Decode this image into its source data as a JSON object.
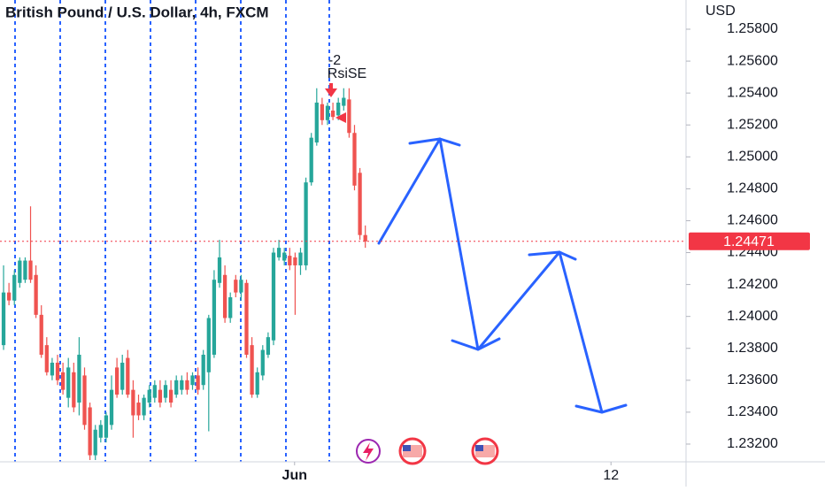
{
  "chart_data": {
    "type": "candlestick",
    "title": "British Pound / U.S. Dollar, 4h, FXCM",
    "currency": "USD",
    "annotation": {
      "count": "-2",
      "label": "RsiSE"
    },
    "x": [
      0,
      1,
      2,
      3,
      4,
      5,
      6,
      7,
      8,
      9,
      10,
      11,
      12,
      13,
      14,
      15,
      16,
      17,
      18,
      19,
      20,
      21,
      22,
      23,
      24,
      25,
      26,
      27,
      28,
      29,
      30,
      31,
      32,
      33,
      34,
      35,
      36,
      37,
      38,
      39,
      40,
      41,
      42,
      43,
      44,
      45,
      46,
      47,
      48,
      49,
      50,
      51,
      52,
      53,
      54,
      55,
      56,
      57,
      58,
      59,
      60,
      61,
      62,
      63,
      64,
      65,
      66,
      67
    ],
    "open": [
      1.2382,
      1.2415,
      1.241,
      1.2421,
      1.2423,
      1.2435,
      1.2426,
      1.2401,
      1.2382,
      1.2363,
      1.2371,
      1.2365,
      1.2349,
      1.2365,
      1.2346,
      1.2363,
      1.2343,
      1.2313,
      1.2324,
      1.2324,
      1.2332,
      1.2368,
      1.2354,
      1.2374,
      1.2354,
      1.2346,
      1.2338,
      1.2346,
      1.2349,
      1.2354,
      1.2349,
      1.2354,
      1.2351,
      1.2354,
      1.236,
      1.2357,
      1.2363,
      1.2357,
      1.2365,
      1.2376,
      1.2421,
      1.2426,
      1.2399,
      1.2423,
      1.2415,
      1.2421,
      1.2382,
      1.2351,
      1.2363,
      1.2376,
      1.2385,
      1.2437,
      1.2435,
      1.2438,
      1.2437,
      1.2432,
      1.2432,
      1.2484,
      1.2509,
      1.2533,
      1.2523,
      1.2529,
      1.2526,
      1.2532,
      1.2536,
      1.2515,
      1.249,
      1.2451
    ],
    "high": [
      1.2432,
      1.2421,
      1.2429,
      1.2437,
      1.2437,
      1.2469,
      1.2432,
      1.2407,
      1.2387,
      1.2374,
      1.2376,
      1.2371,
      1.2374,
      1.2371,
      1.2387,
      1.2368,
      1.2346,
      1.2332,
      1.2335,
      1.234,
      1.2363,
      1.2374,
      1.2376,
      1.2379,
      1.236,
      1.2351,
      1.2351,
      1.2357,
      1.236,
      1.236,
      1.236,
      1.236,
      1.2363,
      1.2363,
      1.2365,
      1.2365,
      1.2368,
      1.2379,
      1.2401,
      1.2429,
      1.2448,
      1.2432,
      1.2415,
      1.2426,
      1.2426,
      1.2423,
      1.2387,
      1.2368,
      1.2382,
      1.239,
      1.2443,
      1.2448,
      1.2443,
      1.2443,
      1.244,
      1.2443,
      1.2487,
      1.2515,
      1.2543,
      1.2537,
      1.2534,
      1.2534,
      1.2537,
      1.2543,
      1.2543,
      1.252,
      1.2493,
      1.2457
    ],
    "low": [
      1.2379,
      1.2407,
      1.2407,
      1.2418,
      1.2421,
      1.2421,
      1.2399,
      1.2374,
      1.2363,
      1.236,
      1.2357,
      1.2351,
      1.2343,
      1.234,
      1.2338,
      1.2329,
      1.231,
      1.231,
      1.2321,
      1.2321,
      1.2329,
      1.2349,
      1.2351,
      1.2349,
      1.2324,
      1.2335,
      1.2335,
      1.2343,
      1.2346,
      1.2343,
      1.2346,
      1.2343,
      1.2349,
      1.2351,
      1.2351,
      1.2354,
      1.2351,
      1.2354,
      1.2328,
      1.2374,
      1.2418,
      1.2396,
      1.2396,
      1.2412,
      1.241,
      1.2374,
      1.2349,
      1.2349,
      1.236,
      1.2374,
      1.2382,
      1.2435,
      1.2432,
      1.2429,
      1.2401,
      1.2426,
      1.2429,
      1.2482,
      1.2507,
      1.252,
      1.252,
      1.2523,
      1.2523,
      1.2529,
      1.2512,
      1.2479,
      1.2448,
      1.2443
    ],
    "close": [
      1.2415,
      1.241,
      1.2426,
      1.2435,
      1.2435,
      1.2423,
      1.2401,
      1.2376,
      1.2365,
      1.2371,
      1.236,
      1.2354,
      1.2368,
      1.2343,
      1.2376,
      1.2332,
      1.2313,
      1.2329,
      1.2332,
      1.2338,
      1.2354,
      1.2351,
      1.2371,
      1.2351,
      1.2338,
      1.2338,
      1.2349,
      1.2354,
      1.2357,
      1.2346,
      1.2357,
      1.2346,
      1.236,
      1.236,
      1.2354,
      1.2363,
      1.2354,
      1.2376,
      1.2399,
      1.2423,
      1.2437,
      1.2399,
      1.2412,
      1.2415,
      1.2423,
      1.2376,
      1.2351,
      1.2365,
      1.2379,
      1.2387,
      1.244,
      1.2443,
      1.244,
      1.2432,
      1.2432,
      1.244,
      1.2484,
      1.2512,
      1.2534,
      1.2523,
      1.2532,
      1.2525,
      1.2534,
      1.2537,
      1.2515,
      1.2482,
      1.2451,
      1.2447
    ],
    "up_color": "#26a69a",
    "down_color": "#ef5350",
    "last_price": {
      "value": 1.24471,
      "label": "1.24471",
      "color": "#f23645"
    },
    "xlim": [
      -0.66,
      126.4
    ],
    "xticks": [
      {
        "value": 53.9,
        "label": "Jun"
      },
      {
        "value": 112.5,
        "label": "12"
      }
    ],
    "ylim": [
      1.231,
      1.25983
    ],
    "yticks": [
      {
        "value": 1.258,
        "label": "1.25800"
      },
      {
        "value": 1.256,
        "label": "1.25600"
      },
      {
        "value": 1.254,
        "label": "1.25400"
      },
      {
        "value": 1.252,
        "label": "1.25200"
      },
      {
        "value": 1.25,
        "label": "1.25000"
      },
      {
        "value": 1.248,
        "label": "1.24800"
      },
      {
        "value": 1.246,
        "label": "1.24600"
      },
      {
        "value": 1.244,
        "label": "1.24400"
      },
      {
        "value": 1.242,
        "label": "1.24200"
      },
      {
        "value": 1.24,
        "label": "1.24000"
      },
      {
        "value": 1.238,
        "label": "1.23800"
      },
      {
        "value": 1.236,
        "label": "1.23600"
      },
      {
        "value": 1.234,
        "label": "1.23400"
      },
      {
        "value": 1.232,
        "label": "1.23200"
      }
    ]
  }
}
